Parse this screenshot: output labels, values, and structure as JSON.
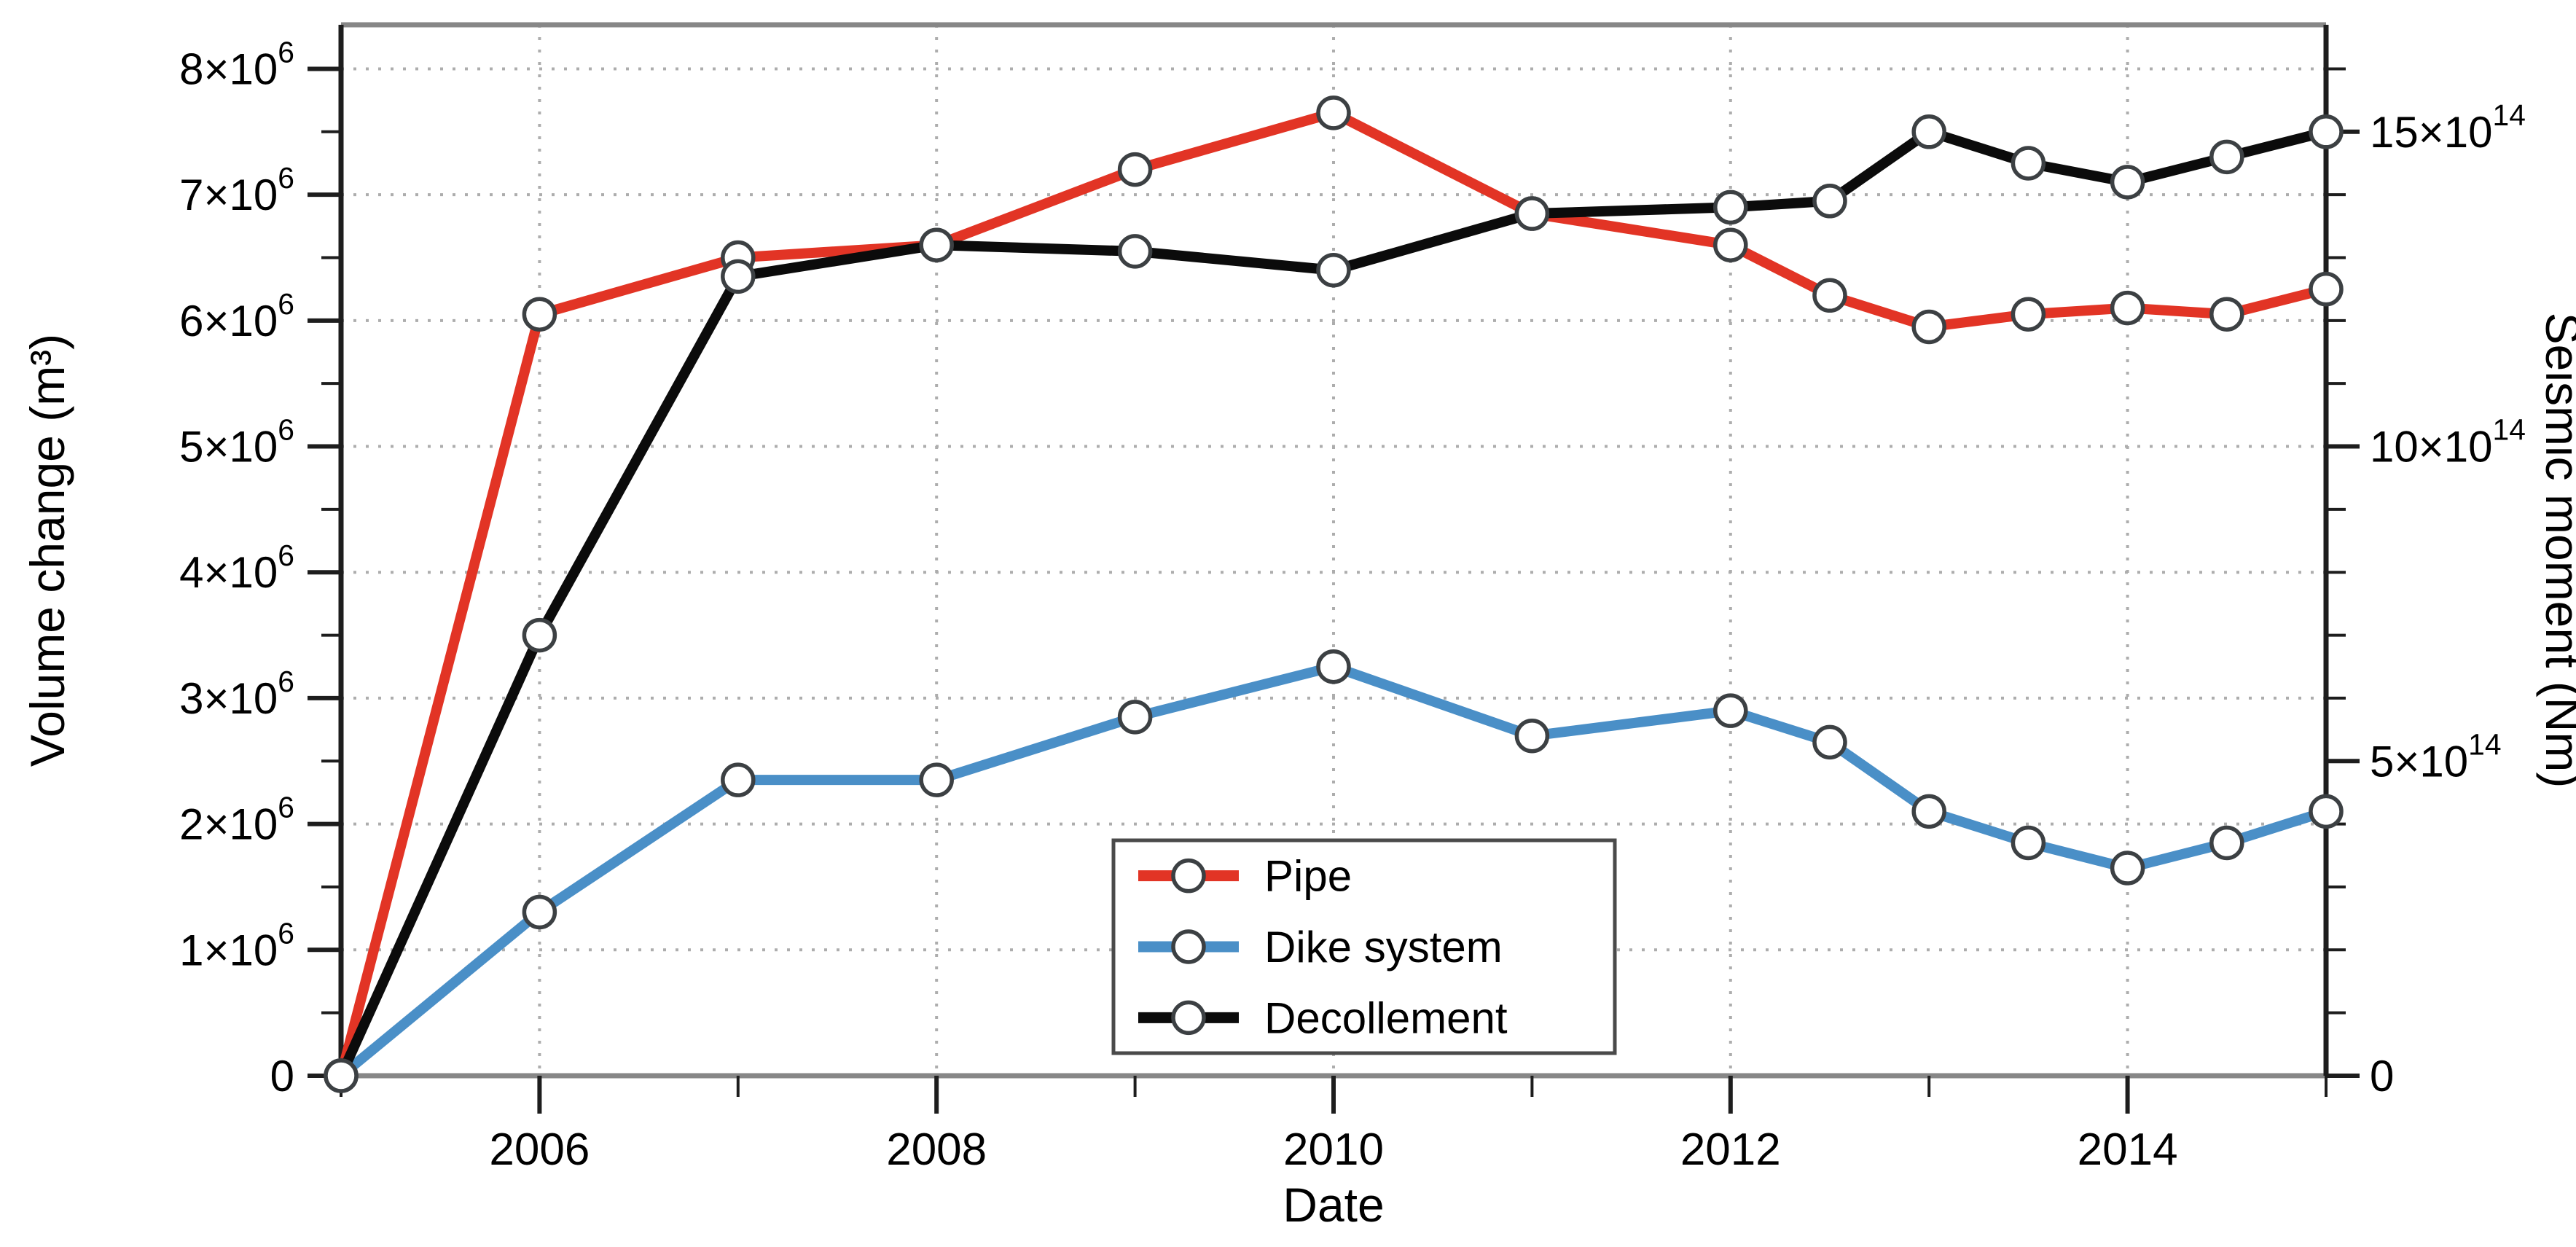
{
  "chart_data": {
    "type": "line",
    "title": "",
    "x": [
      2005,
      2006,
      2007,
      2008,
      2009,
      2010,
      2011,
      2012,
      2012.5,
      2013,
      2013.5,
      2014,
      2014.5,
      2015
    ],
    "x_axis": {
      "label": "Date",
      "range": [
        2005,
        2015
      ],
      "major_ticks": [
        {
          "value": 2006,
          "label": "2006"
        },
        {
          "value": 2008,
          "label": "2008"
        },
        {
          "value": 2010,
          "label": "2010"
        },
        {
          "value": 2012,
          "label": "2012"
        },
        {
          "value": 2014,
          "label": "2014"
        }
      ],
      "minor_ticks": [
        2005,
        2007,
        2009,
        2011,
        2013,
        2015
      ]
    },
    "left_axis": {
      "label": "Volume change (m³)",
      "unit": "m³",
      "range": [
        0,
        8350000
      ],
      "major_ticks": [
        {
          "value": 0,
          "label": "0",
          "sup": ""
        },
        {
          "value": 1000000,
          "label": "1×10",
          "sup": "6"
        },
        {
          "value": 2000000,
          "label": "2×10",
          "sup": "6"
        },
        {
          "value": 3000000,
          "label": "3×10",
          "sup": "6"
        },
        {
          "value": 4000000,
          "label": "4×10",
          "sup": "6"
        },
        {
          "value": 5000000,
          "label": "5×10",
          "sup": "6"
        },
        {
          "value": 6000000,
          "label": "6×10",
          "sup": "6"
        },
        {
          "value": 7000000,
          "label": "7×10",
          "sup": "6"
        },
        {
          "value": 8000000,
          "label": "8×10",
          "sup": "6"
        }
      ],
      "major_step": 1000000,
      "minor_step": 500000,
      "gridlines": true
    },
    "right_axis": {
      "label": "Seismic moment (Nm)",
      "unit": "Nm",
      "value_scale": "1e14",
      "range": [
        0,
        16.7
      ],
      "major_ticks": [
        {
          "value": 0,
          "label": "0",
          "sup": ""
        },
        {
          "value": 5,
          "label": "5×10",
          "sup": "14"
        },
        {
          "value": 10,
          "label": "10×10",
          "sup": "14"
        },
        {
          "value": 15,
          "label": "15×10",
          "sup": "14"
        }
      ],
      "major_step": 5,
      "minor_step": 1,
      "gridlines": false
    },
    "series": [
      {
        "name": "Pipe",
        "axis": "left",
        "color": "#e23425",
        "values": [
          0,
          6050000,
          6500000,
          6600000,
          7200000,
          7650000,
          6850000,
          6600000,
          6200000,
          5950000,
          6050000,
          6100000,
          6050000,
          6250000
        ]
      },
      {
        "name": "Dike system",
        "axis": "left",
        "color": "#4a8fc7",
        "values": [
          0,
          1300000,
          2350000,
          2350000,
          2850000,
          3250000,
          2700000,
          2900000,
          2650000,
          2100000,
          1850000,
          1650000,
          1850000,
          2100000
        ]
      },
      {
        "name": "Decollement",
        "axis": "right",
        "color": "#0b0b0b",
        "values": [
          0,
          7.0,
          12.7,
          13.2,
          13.1,
          12.8,
          13.7,
          13.8,
          13.9,
          15.0,
          14.5,
          14.2,
          14.6,
          15.0
        ]
      }
    ],
    "legend": {
      "position": "inside-bottom-center",
      "items": [
        "Pipe",
        "Dike system",
        "Decollement"
      ]
    },
    "grid": {
      "style": "dotted",
      "color": "#adadad"
    },
    "marker": {
      "shape": "open-circle",
      "fill": "#ffffff",
      "stroke": "#3c4043"
    },
    "frame": {
      "top_bottom_color": "#878787",
      "left_right_color": "#1d1d1d"
    },
    "layout_hints": {
      "legend_border_color": "#4a4a4a",
      "text_color": "#000000"
    }
  }
}
